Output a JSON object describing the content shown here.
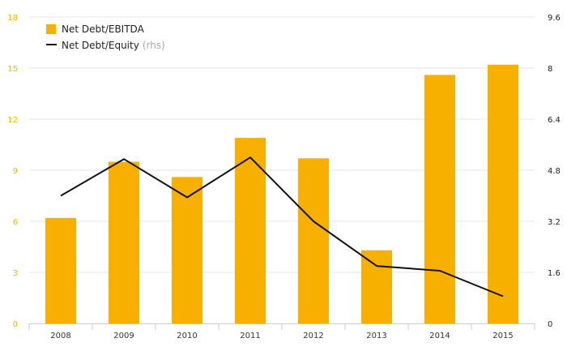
{
  "colors": {
    "bar": "#f7b000",
    "line": "#111111",
    "grid": "#e6e6e6",
    "axis": "#cccccc"
  },
  "chart_data": {
    "type": "bar",
    "categories": [
      "2008",
      "2009",
      "2010",
      "2011",
      "2012",
      "2013",
      "2014",
      "2015"
    ],
    "series": [
      {
        "name": "Net Debt/EBITDA",
        "type": "bar",
        "axis": "left",
        "values": [
          6.2,
          9.5,
          8.6,
          10.9,
          9.7,
          4.3,
          14.6,
          15.2
        ]
      },
      {
        "name": "Net Debt/Equity",
        "name_note": "(rhs)",
        "type": "line",
        "axis": "right",
        "values": [
          4.0,
          5.15,
          3.95,
          5.2,
          3.2,
          1.8,
          1.65,
          0.85
        ]
      }
    ],
    "y_left": {
      "ticks": [
        "0",
        "3",
        "6",
        "9",
        "12",
        "15",
        "18"
      ],
      "range": [
        0,
        18
      ]
    },
    "y_right": {
      "ticks": [
        "0",
        "1.6",
        "3.2",
        "4.8",
        "6.4",
        "8",
        "9.6"
      ],
      "range": [
        0,
        9.6
      ]
    },
    "grid": true,
    "legend_position": "top-left"
  }
}
